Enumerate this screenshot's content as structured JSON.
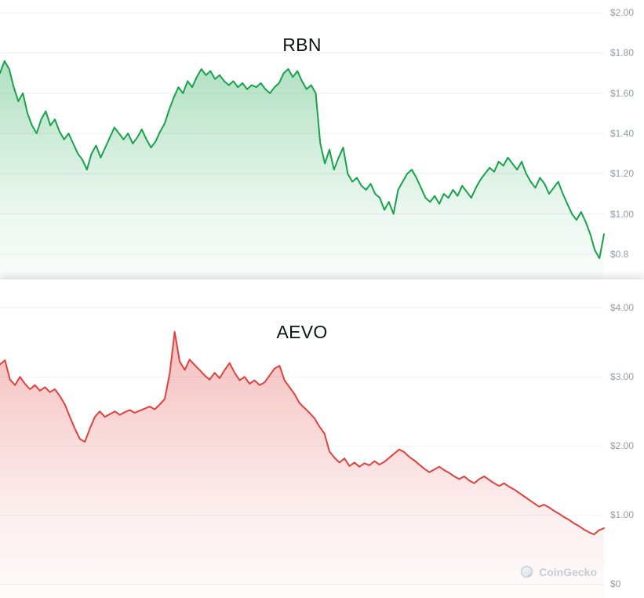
{
  "watermark": {
    "label": "CoinGecko"
  },
  "chart_data": [
    {
      "type": "area",
      "title": "RBN",
      "xlabel": "",
      "ylabel": "",
      "ylim": [
        0.675,
        2.063
      ],
      "grid": true,
      "axis_side": "right",
      "line_color": "#16a34a",
      "yticks": [
        {
          "value": 2.0,
          "label": "$2.00"
        },
        {
          "value": 1.8,
          "label": "$1.80"
        },
        {
          "value": 1.6,
          "label": "$1.60"
        },
        {
          "value": 1.4,
          "label": "$1.40"
        },
        {
          "value": 1.2,
          "label": "$1.20"
        },
        {
          "value": 1.0,
          "label": "$1.00"
        },
        {
          "value": 0.8,
          "label": "$0.8"
        }
      ],
      "values": [
        1.7,
        1.76,
        1.72,
        1.63,
        1.56,
        1.6,
        1.5,
        1.44,
        1.4,
        1.47,
        1.51,
        1.44,
        1.47,
        1.41,
        1.37,
        1.4,
        1.35,
        1.3,
        1.27,
        1.22,
        1.3,
        1.34,
        1.28,
        1.33,
        1.38,
        1.43,
        1.4,
        1.37,
        1.4,
        1.35,
        1.38,
        1.42,
        1.37,
        1.33,
        1.36,
        1.41,
        1.45,
        1.52,
        1.58,
        1.63,
        1.6,
        1.66,
        1.63,
        1.68,
        1.72,
        1.69,
        1.71,
        1.67,
        1.69,
        1.66,
        1.64,
        1.66,
        1.63,
        1.65,
        1.62,
        1.64,
        1.63,
        1.65,
        1.62,
        1.6,
        1.63,
        1.65,
        1.7,
        1.72,
        1.68,
        1.71,
        1.66,
        1.62,
        1.64,
        1.6,
        1.35,
        1.25,
        1.32,
        1.22,
        1.28,
        1.33,
        1.2,
        1.16,
        1.18,
        1.14,
        1.12,
        1.15,
        1.1,
        1.08,
        1.02,
        1.06,
        1.0,
        1.12,
        1.16,
        1.2,
        1.22,
        1.18,
        1.13,
        1.08,
        1.06,
        1.09,
        1.05,
        1.1,
        1.08,
        1.12,
        1.09,
        1.14,
        1.11,
        1.08,
        1.13,
        1.17,
        1.2,
        1.23,
        1.21,
        1.26,
        1.24,
        1.28,
        1.25,
        1.22,
        1.26,
        1.2,
        1.16,
        1.13,
        1.18,
        1.15,
        1.1,
        1.13,
        1.16,
        1.1,
        1.05,
        1.0,
        0.97,
        1.01,
        0.96,
        0.9,
        0.82,
        0.78,
        0.9
      ]
    },
    {
      "type": "area",
      "title": "AEVO",
      "xlabel": "",
      "ylabel": "",
      "ylim": [
        -0.2,
        4.41
      ],
      "grid": true,
      "axis_side": "right",
      "line_color": "#e0413e",
      "yticks": [
        {
          "value": 4.0,
          "label": "$4.00"
        },
        {
          "value": 3.0,
          "label": "$3.00"
        },
        {
          "value": 2.0,
          "label": "$2.00"
        },
        {
          "value": 1.0,
          "label": "$1.00"
        },
        {
          "value": 0.0,
          "label": "$0"
        }
      ],
      "values": [
        3.18,
        3.24,
        2.96,
        2.88,
        3.0,
        2.9,
        2.82,
        2.88,
        2.8,
        2.85,
        2.78,
        2.82,
        2.72,
        2.6,
        2.42,
        2.25,
        2.1,
        2.06,
        2.25,
        2.42,
        2.5,
        2.42,
        2.46,
        2.5,
        2.45,
        2.49,
        2.52,
        2.48,
        2.51,
        2.54,
        2.57,
        2.53,
        2.6,
        2.68,
        3.05,
        3.65,
        3.22,
        3.1,
        3.25,
        3.17,
        3.1,
        3.02,
        2.96,
        3.06,
        2.98,
        3.1,
        3.2,
        3.06,
        2.95,
        3.0,
        2.9,
        2.95,
        2.88,
        2.92,
        3.02,
        3.12,
        3.16,
        2.95,
        2.85,
        2.75,
        2.62,
        2.55,
        2.48,
        2.4,
        2.28,
        2.18,
        1.92,
        1.83,
        1.76,
        1.82,
        1.71,
        1.76,
        1.7,
        1.75,
        1.72,
        1.78,
        1.73,
        1.77,
        1.83,
        1.89,
        1.95,
        1.91,
        1.84,
        1.79,
        1.73,
        1.67,
        1.62,
        1.66,
        1.7,
        1.65,
        1.61,
        1.56,
        1.52,
        1.56,
        1.5,
        1.46,
        1.52,
        1.56,
        1.51,
        1.46,
        1.42,
        1.46,
        1.41,
        1.37,
        1.32,
        1.27,
        1.22,
        1.17,
        1.12,
        1.15,
        1.11,
        1.06,
        1.02,
        0.97,
        0.93,
        0.88,
        0.84,
        0.79,
        0.75,
        0.72,
        0.78,
        0.81
      ]
    }
  ]
}
